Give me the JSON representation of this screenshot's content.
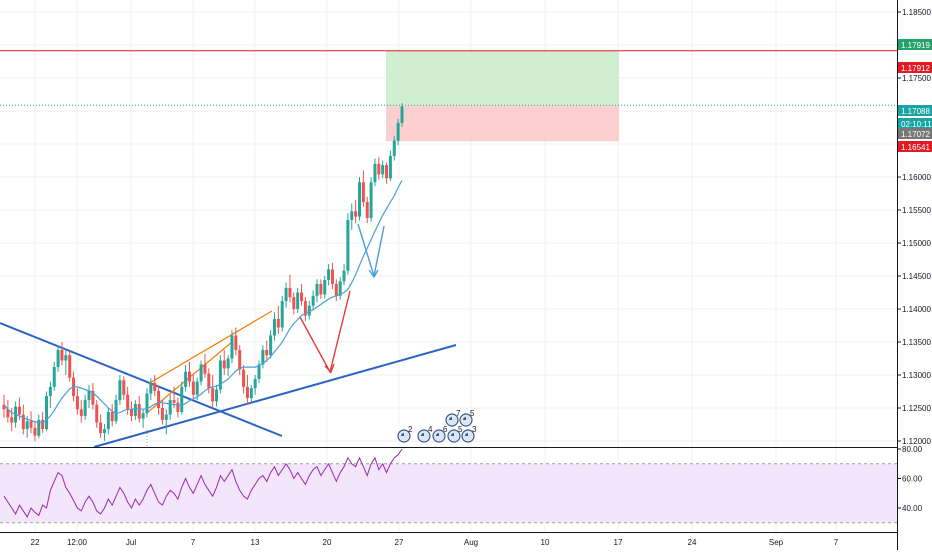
{
  "chart_data": {
    "type": "candlestick",
    "price_axis": {
      "range": [
        1.12,
        1.19
      ],
      "ticks": [
        "1.18500",
        "1.18000",
        "1.17500",
        "1.17000",
        "1.16500",
        "1.16000",
        "1.15500",
        "1.15000",
        "1.14500",
        "1.14000",
        "1.13500",
        "1.13000",
        "1.12500",
        "1.12000"
      ]
    },
    "price_badges": [
      {
        "label": "1.17919",
        "value": 1.17919,
        "color": "#26a269"
      },
      {
        "label": "1.17912",
        "value": 1.17912,
        "color": "#e01b24"
      },
      {
        "label": "1.17088",
        "value": 1.17088,
        "color": "#1aa3a3"
      },
      {
        "label": "02:10:11",
        "value": 1.1698,
        "color": "#1aa3a3"
      },
      {
        "label": "1.17072",
        "value": 1.1688,
        "color": "#777777"
      },
      {
        "label": "1.16541",
        "value": 1.16541,
        "color": "#e01b24"
      }
    ],
    "time_axis": {
      "labels": [
        "22",
        "12:00",
        "Jul",
        "7",
        "13",
        "20",
        "27",
        "Aug",
        "10",
        "17",
        "24",
        "Sep",
        "7"
      ]
    },
    "candles": [
      [
        1.1255,
        1.127,
        1.1235,
        1.1248
      ],
      [
        1.1248,
        1.1262,
        1.1228,
        1.1236
      ],
      [
        1.1236,
        1.125,
        1.1215,
        1.1228
      ],
      [
        1.1228,
        1.126,
        1.122,
        1.1252
      ],
      [
        1.1252,
        1.1266,
        1.1232,
        1.124
      ],
      [
        1.124,
        1.1255,
        1.121,
        1.1218
      ],
      [
        1.1218,
        1.1238,
        1.1205,
        1.123
      ],
      [
        1.123,
        1.1245,
        1.1212,
        1.122
      ],
      [
        1.122,
        1.123,
        1.12,
        1.1208
      ],
      [
        1.1208,
        1.124,
        1.1204,
        1.1232
      ],
      [
        1.1232,
        1.1244,
        1.1212,
        1.1218
      ],
      [
        1.1218,
        1.1275,
        1.1215,
        1.1268
      ],
      [
        1.1268,
        1.129,
        1.125,
        1.1282
      ],
      [
        1.1282,
        1.132,
        1.1276,
        1.1312
      ],
      [
        1.1312,
        1.1345,
        1.1305,
        1.1338
      ],
      [
        1.1338,
        1.135,
        1.1315,
        1.1322
      ],
      [
        1.1322,
        1.134,
        1.13,
        1.133
      ],
      [
        1.133,
        1.1336,
        1.129,
        1.1296
      ],
      [
        1.1296,
        1.1305,
        1.126,
        1.1268
      ],
      [
        1.1268,
        1.128,
        1.124,
        1.1248
      ],
      [
        1.1248,
        1.1262,
        1.1228,
        1.1238
      ],
      [
        1.1238,
        1.127,
        1.1232,
        1.1262
      ],
      [
        1.1262,
        1.1285,
        1.125,
        1.1276
      ],
      [
        1.1276,
        1.1288,
        1.1248,
        1.1255
      ],
      [
        1.1255,
        1.1262,
        1.122,
        1.1228
      ],
      [
        1.1228,
        1.124,
        1.1205,
        1.1212
      ],
      [
        1.1212,
        1.1226,
        1.12,
        1.1218
      ],
      [
        1.1218,
        1.125,
        1.121,
        1.1244
      ],
      [
        1.1244,
        1.1256,
        1.1222,
        1.123
      ],
      [
        1.123,
        1.127,
        1.1226,
        1.1262
      ],
      [
        1.1262,
        1.13,
        1.1255,
        1.1292
      ],
      [
        1.1292,
        1.1298,
        1.1262,
        1.127
      ],
      [
        1.127,
        1.1282,
        1.124,
        1.1248
      ],
      [
        1.1248,
        1.126,
        1.123,
        1.1238
      ],
      [
        1.1238,
        1.1262,
        1.1232,
        1.1256
      ],
      [
        1.1256,
        1.1268,
        1.1228,
        1.1234
      ],
      [
        1.1234,
        1.1248,
        1.122,
        1.1242
      ],
      [
        1.1242,
        1.128,
        1.1236,
        1.1272
      ],
      [
        1.1272,
        1.1295,
        1.1262,
        1.1288
      ],
      [
        1.1288,
        1.13,
        1.1268,
        1.1276
      ],
      [
        1.1276,
        1.1284,
        1.124,
        1.125
      ],
      [
        1.125,
        1.1262,
        1.1225,
        1.1232
      ],
      [
        1.1232,
        1.1248,
        1.121,
        1.124
      ],
      [
        1.124,
        1.127,
        1.1232,
        1.1262
      ],
      [
        1.1262,
        1.1282,
        1.125,
        1.1258
      ],
      [
        1.1258,
        1.1266,
        1.1236,
        1.1244
      ],
      [
        1.1244,
        1.129,
        1.124,
        1.1282
      ],
      [
        1.1282,
        1.1315,
        1.1275,
        1.1305
      ],
      [
        1.1305,
        1.132,
        1.1282,
        1.129
      ],
      [
        1.129,
        1.13,
        1.1262,
        1.127
      ],
      [
        1.127,
        1.1296,
        1.1262,
        1.129
      ],
      [
        1.129,
        1.1322,
        1.1284,
        1.1316
      ],
      [
        1.1316,
        1.1332,
        1.1296,
        1.1302
      ],
      [
        1.1302,
        1.131,
        1.1272,
        1.128
      ],
      [
        1.128,
        1.13,
        1.125,
        1.126
      ],
      [
        1.126,
        1.1285,
        1.1252,
        1.1278
      ],
      [
        1.1278,
        1.133,
        1.1272,
        1.1322
      ],
      [
        1.1322,
        1.1338,
        1.13,
        1.131
      ],
      [
        1.131,
        1.133,
        1.1298,
        1.1325
      ],
      [
        1.1325,
        1.1368,
        1.1318,
        1.136
      ],
      [
        1.136,
        1.1372,
        1.133,
        1.1338
      ],
      [
        1.1338,
        1.1345,
        1.13,
        1.1308
      ],
      [
        1.1308,
        1.1315,
        1.1272,
        1.1282
      ],
      [
        1.1282,
        1.13,
        1.1255,
        1.1265
      ],
      [
        1.1265,
        1.1285,
        1.1258,
        1.128
      ],
      [
        1.128,
        1.13,
        1.127,
        1.1294
      ],
      [
        1.1294,
        1.1322,
        1.1288,
        1.1316
      ],
      [
        1.1316,
        1.1345,
        1.131,
        1.1338
      ],
      [
        1.1338,
        1.1352,
        1.132,
        1.133
      ],
      [
        1.133,
        1.1368,
        1.1325,
        1.136
      ],
      [
        1.136,
        1.1395,
        1.1352,
        1.1385
      ],
      [
        1.1385,
        1.1405,
        1.1362,
        1.1372
      ],
      [
        1.1372,
        1.142,
        1.1366,
        1.1412
      ],
      [
        1.1412,
        1.144,
        1.1402,
        1.1432
      ],
      [
        1.1432,
        1.1452,
        1.141,
        1.1418
      ],
      [
        1.1418,
        1.1425,
        1.1392,
        1.14
      ],
      [
        1.14,
        1.1432,
        1.1394,
        1.1425
      ],
      [
        1.1425,
        1.1438,
        1.1405,
        1.1412
      ],
      [
        1.1412,
        1.1418,
        1.1382,
        1.139
      ],
      [
        1.139,
        1.1412,
        1.1384,
        1.1405
      ],
      [
        1.1405,
        1.1428,
        1.1398,
        1.142
      ],
      [
        1.142,
        1.1445,
        1.141,
        1.1438
      ],
      [
        1.1438,
        1.1445,
        1.1415,
        1.1422
      ],
      [
        1.1422,
        1.145,
        1.1416,
        1.1444
      ],
      [
        1.1444,
        1.1468,
        1.1436,
        1.146
      ],
      [
        1.146,
        1.147,
        1.143,
        1.1438
      ],
      [
        1.1438,
        1.1445,
        1.1412,
        1.142
      ],
      [
        1.142,
        1.1448,
        1.1414,
        1.1442
      ],
      [
        1.1442,
        1.1468,
        1.1436,
        1.1458
      ],
      [
        1.1458,
        1.1545,
        1.1452,
        1.1535
      ],
      [
        1.1535,
        1.156,
        1.152,
        1.1548
      ],
      [
        1.1548,
        1.1565,
        1.153,
        1.154
      ],
      [
        1.154,
        1.16,
        1.1534,
        1.1592
      ],
      [
        1.1592,
        1.161,
        1.1555,
        1.1562
      ],
      [
        1.1562,
        1.157,
        1.153,
        1.1538
      ],
      [
        1.1538,
        1.16,
        1.1532,
        1.1592
      ],
      [
        1.1592,
        1.1628,
        1.1586,
        1.162
      ],
      [
        1.162,
        1.163,
        1.1596,
        1.1604
      ],
      [
        1.1604,
        1.1625,
        1.1598,
        1.1618
      ],
      [
        1.1618,
        1.1622,
        1.159,
        1.1598
      ],
      [
        1.1598,
        1.164,
        1.1594,
        1.1632
      ],
      [
        1.1632,
        1.1662,
        1.1625,
        1.1655
      ],
      [
        1.1655,
        1.1688,
        1.1648,
        1.1682
      ],
      [
        1.1682,
        1.1712,
        1.1676,
        1.1707
      ]
    ],
    "ma_line": [
      1.1255,
      1.1248,
      1.1243,
      1.124,
      1.1238,
      1.1235,
      1.1233,
      1.1231,
      1.1229,
      1.1228,
      1.1228,
      1.1232,
      1.1238,
      1.1246,
      1.1256,
      1.1265,
      1.1272,
      1.1279,
      1.1282,
      1.1282,
      1.128,
      1.1278,
      1.1276,
      1.1273,
      1.1268,
      1.1262,
      1.1256,
      1.125,
      1.1245,
      1.1242,
      1.1243,
      1.1246,
      1.1248,
      1.1248,
      1.1249,
      1.1249,
      1.1248,
      1.1249,
      1.1252,
      1.1256,
      1.1258,
      1.1258,
      1.1257,
      1.1256,
      1.1255,
      1.1254,
      1.1254,
      1.1257,
      1.1261,
      1.1264,
      1.1267,
      1.1271,
      1.1276,
      1.128,
      1.1282,
      1.1283,
      1.1286,
      1.129,
      1.1294,
      1.13,
      1.1306,
      1.131,
      1.1312,
      1.1312,
      1.1312,
      1.1312,
      1.1314,
      1.1318,
      1.1322,
      1.1328,
      1.1335,
      1.1342,
      1.135,
      1.136,
      1.137,
      1.1378,
      1.1384,
      1.139,
      1.1394,
      1.1396,
      1.1399,
      1.1403,
      1.1407,
      1.1411,
      1.1415,
      1.1418,
      1.142,
      1.1422,
      1.1425,
      1.143,
      1.144,
      1.1452,
      1.1466,
      1.148,
      1.1492,
      1.1505,
      1.1518,
      1.153,
      1.1542,
      1.1552,
      1.1562,
      1.1572,
      1.1584,
      1.1595
    ],
    "rsi": {
      "ticks": [
        "80.00",
        "60.00",
        "40.00"
      ],
      "range": [
        20,
        90
      ],
      "band": [
        70,
        30
      ],
      "values": [
        48,
        44,
        40,
        36,
        42,
        38,
        34,
        40,
        37,
        35,
        42,
        40,
        52,
        58,
        64,
        62,
        54,
        50,
        45,
        40,
        38,
        44,
        48,
        44,
        38,
        36,
        40,
        46,
        42,
        48,
        54,
        50,
        44,
        40,
        46,
        42,
        46,
        52,
        56,
        50,
        44,
        42,
        48,
        52,
        50,
        46,
        54,
        60,
        54,
        50,
        56,
        62,
        56,
        52,
        48,
        54,
        62,
        58,
        62,
        66,
        58,
        52,
        48,
        46,
        52,
        56,
        60,
        62,
        58,
        64,
        68,
        62,
        66,
        70,
        66,
        60,
        64,
        60,
        56,
        62,
        66,
        68,
        62,
        66,
        70,
        64,
        58,
        64,
        68,
        74,
        70,
        68,
        74,
        68,
        62,
        70,
        74,
        66,
        70,
        64,
        70,
        74,
        76,
        80
      ]
    },
    "horizontal_lines": [
      {
        "value": 1.17912,
        "color": "#e01b24"
      },
      {
        "value": 1.17088,
        "color": "#1aa3a3",
        "dotted": true
      }
    ],
    "position_zones": [
      {
        "from": 1.17088,
        "to": 1.17919,
        "color": "#c8ecc9"
      },
      {
        "from": 1.16541,
        "to": 1.17088,
        "color": "#fbc8c8"
      }
    ],
    "event_markers": [
      {
        "label": "2"
      },
      {
        "label": "4"
      },
      {
        "label": "6"
      },
      {
        "label": "5"
      },
      {
        "label": "3"
      },
      {
        "label": "7"
      },
      {
        "label": "5"
      }
    ],
    "colors": {
      "up": "#26a69a",
      "down": "#ef5350",
      "ma": "#4a9fd8",
      "rsi": "#9c27b0",
      "trend_blue": "#2b63c4",
      "trend_orange": "#f57c00",
      "arrow_red": "#e53935",
      "arrow_blue": "#4a9fd8"
    }
  }
}
